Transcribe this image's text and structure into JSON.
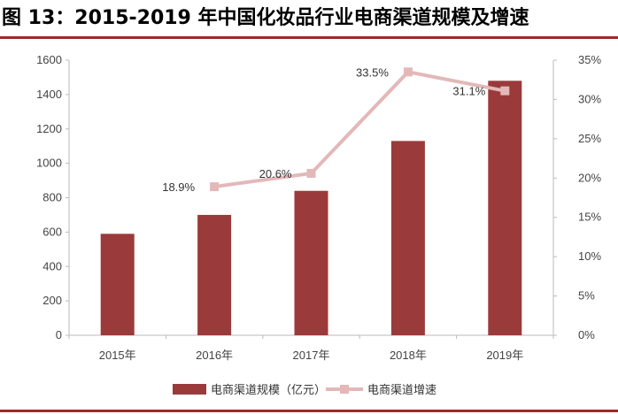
{
  "title": "图 13：2015-2019 年中国化妆品行业电商渠道规模及增速",
  "colors": {
    "bar": "#9b3a3a",
    "line": "#e3b8b9",
    "marker": "#e3b8b9",
    "rule": "#a0282a"
  },
  "chart_data": {
    "type": "bar",
    "categories": [
      "2015年",
      "2016年",
      "2017年",
      "2018年",
      "2019年"
    ],
    "series": [
      {
        "name": "电商渠道规模（亿元）",
        "type": "bar",
        "axis": "left",
        "values": [
          590,
          700,
          840,
          1130,
          1480
        ]
      },
      {
        "name": "电商渠道增速",
        "type": "line",
        "axis": "right",
        "values": [
          null,
          18.9,
          20.6,
          33.5,
          31.1
        ],
        "labels": [
          "",
          "18.9%",
          "20.6%",
          "33.5%",
          "31.1%"
        ]
      }
    ],
    "ylim_left": [
      0,
      1600
    ],
    "yticks_left": [
      "0",
      "200",
      "400",
      "600",
      "800",
      "1000",
      "1200",
      "1400",
      "1600"
    ],
    "ylim_right": [
      0,
      35
    ],
    "yticks_right": [
      "0%",
      "5%",
      "10%",
      "15%",
      "20%",
      "25%",
      "30%",
      "35%"
    ],
    "grid": false,
    "legend_position": "bottom"
  }
}
